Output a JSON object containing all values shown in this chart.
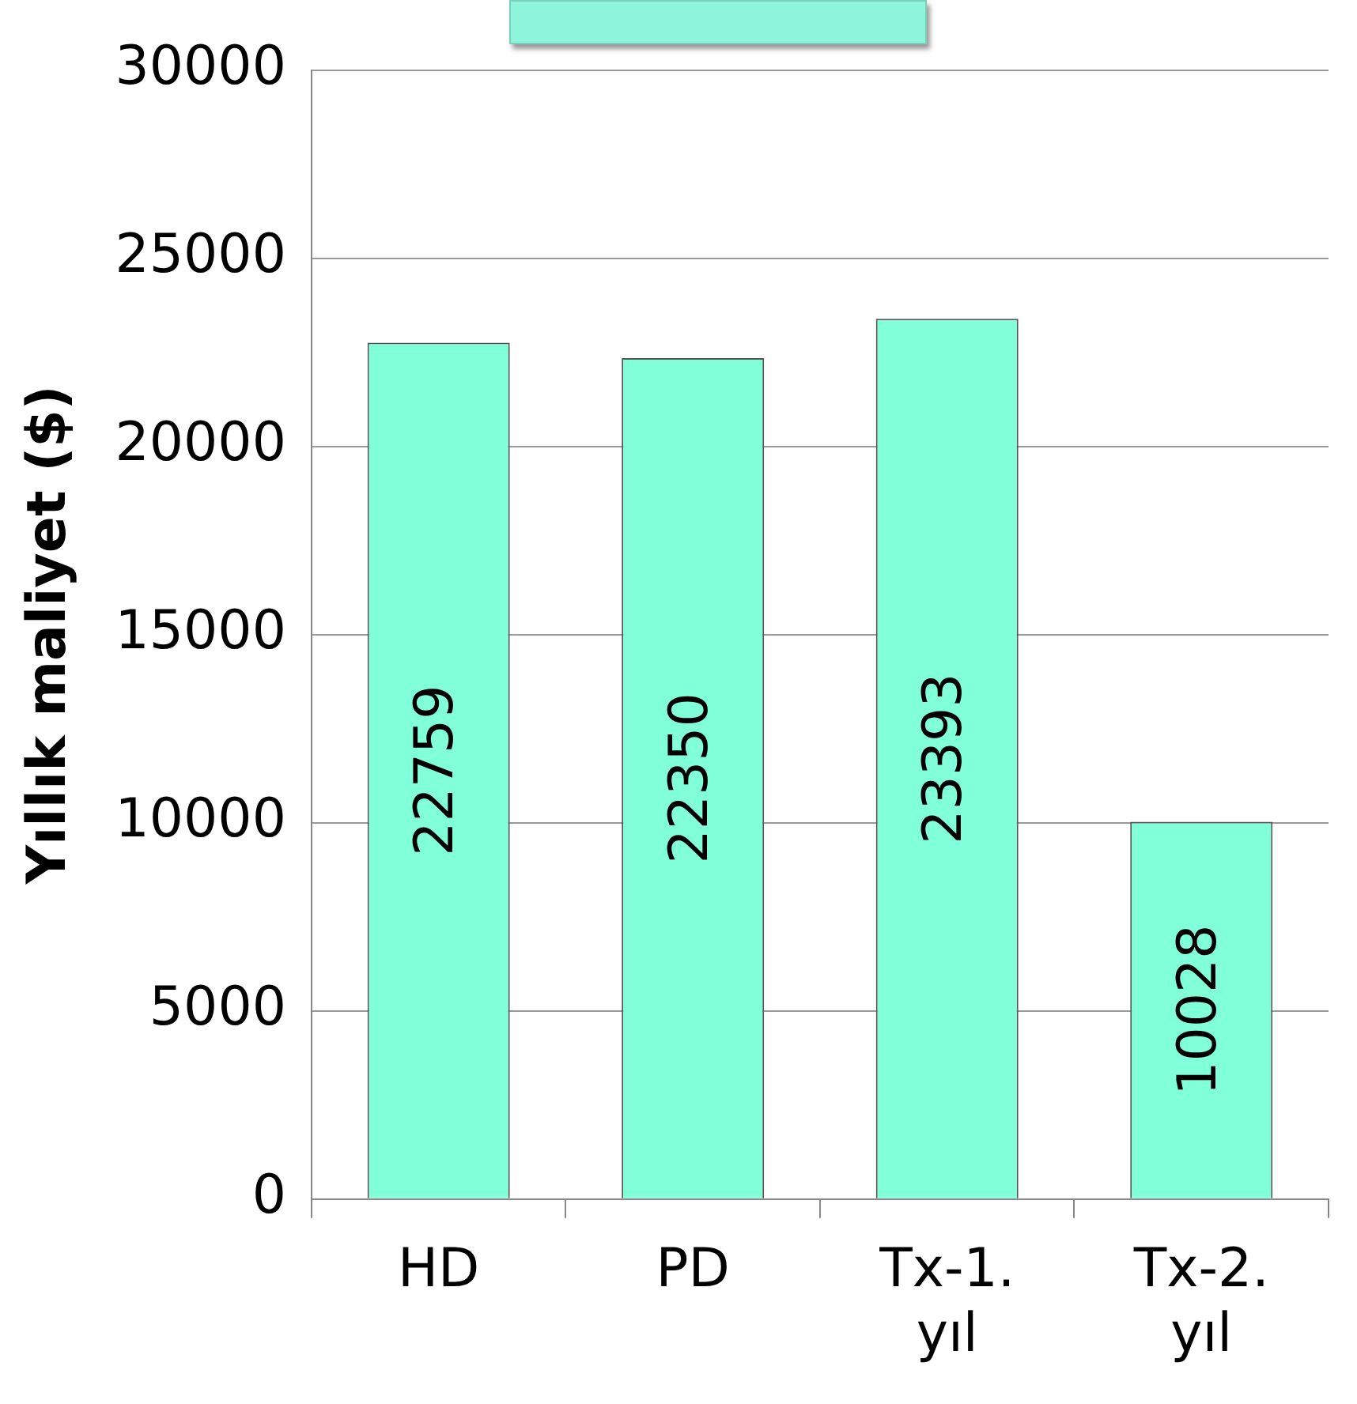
{
  "chart_data": {
    "type": "bar",
    "ylabel": "Yıllık maliyet ($)",
    "categories": [
      "HD",
      "PD",
      "Tx-1. yıl",
      "Tx-2. yıl"
    ],
    "values": [
      22759,
      22350,
      23393,
      10028
    ],
    "color": "#80ffd8",
    "ylim": [
      0,
      30000
    ],
    "yticks": [
      0,
      5000,
      10000,
      15000,
      20000,
      25000,
      30000
    ],
    "grid": "y",
    "data_labels": true,
    "legend": false
  }
}
